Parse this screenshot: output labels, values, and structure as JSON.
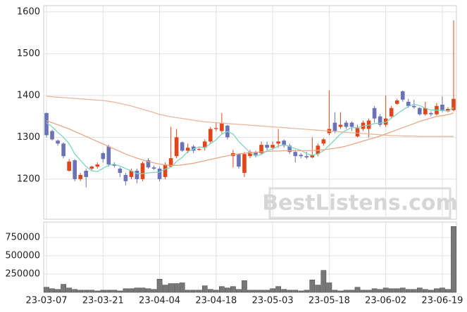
{
  "chart_data": [
    {
      "type": "candlestick",
      "categories": [
        "23-03-07",
        null,
        null,
        null,
        null,
        null,
        null,
        null,
        null,
        null,
        "23-03-21",
        null,
        null,
        null,
        null,
        null,
        null,
        null,
        null,
        null,
        "23-04-04",
        null,
        null,
        null,
        null,
        null,
        null,
        null,
        null,
        null,
        "23-04-18",
        null,
        null,
        null,
        null,
        null,
        null,
        null,
        null,
        null,
        "23-05-03",
        null,
        null,
        null,
        null,
        null,
        null,
        null,
        null,
        null,
        "23-05-18",
        null,
        null,
        null,
        null,
        null,
        null,
        null,
        null,
        null,
        "23-06-02",
        null,
        null,
        null,
        null,
        null,
        null,
        null,
        null,
        null,
        "23-06-19",
        null,
        null
      ],
      "open": [
        1358,
        1315,
        1292,
        1285,
        1220,
        1245,
        1200,
        1220,
        1225,
        1230,
        1262,
        1278,
        1235,
        1225,
        1210,
        1205,
        1220,
        1200,
        1245,
        1228,
        1225,
        1205,
        1230,
        1255,
        1288,
        1268,
        1278,
        1270,
        1275,
        1290,
        1320,
        1315,
        1328,
        1255,
        1260,
        1215,
        1255,
        1265,
        1262,
        1282,
        1275,
        1285,
        1292,
        1280,
        1265,
        1258,
        1255,
        1252,
        1260,
        1285,
        1310,
        1335,
        1325,
        1335,
        1335,
        1302,
        1320,
        1320,
        1370,
        1350,
        1330,
        1350,
        1380,
        1410,
        1385,
        1375,
        1370,
        1355,
        1358,
        1355,
        1378,
        1362,
        1365
      ],
      "high": [
        1360,
        1318,
        1295,
        1288,
        1248,
        1248,
        1215,
        1225,
        1232,
        1240,
        1265,
        1282,
        1240,
        1228,
        1215,
        1225,
        1225,
        1242,
        1250,
        1232,
        1230,
        1240,
        1325,
        1320,
        1290,
        1285,
        1282,
        1275,
        1295,
        1325,
        1335,
        1358,
        1330,
        1270,
        1262,
        1265,
        1270,
        1268,
        1290,
        1290,
        1290,
        1320,
        1295,
        1285,
        1270,
        1262,
        1265,
        1300,
        1285,
        1298,
        1412,
        1360,
        1360,
        1340,
        1338,
        1330,
        1340,
        1345,
        1375,
        1355,
        1400,
        1375,
        1392,
        1412,
        1392,
        1390,
        1372,
        1385,
        1362,
        1382,
        1398,
        1372,
        1580
      ],
      "low": [
        1300,
        1292,
        1280,
        1250,
        1218,
        1195,
        1195,
        1180,
        1220,
        1225,
        1240,
        1230,
        1228,
        1205,
        1185,
        1200,
        1190,
        1195,
        1225,
        1222,
        1195,
        1200,
        1228,
        1250,
        1265,
        1262,
        1262,
        1268,
        1268,
        1285,
        1315,
        1310,
        1295,
        1228,
        1225,
        1205,
        1250,
        1252,
        1258,
        1270,
        1270,
        1275,
        1275,
        1260,
        1240,
        1250,
        1248,
        1250,
        1255,
        1280,
        1305,
        1310,
        1320,
        1320,
        1315,
        1300,
        1315,
        1300,
        1335,
        1325,
        1325,
        1345,
        1378,
        1385,
        1370,
        1368,
        1352,
        1352,
        1350,
        1352,
        1360,
        1360,
        1362
      ],
      "close": [
        1305,
        1295,
        1285,
        1255,
        1242,
        1200,
        1210,
        1205,
        1230,
        1235,
        1248,
        1235,
        1232,
        1215,
        1195,
        1220,
        1200,
        1238,
        1228,
        1225,
        1200,
        1235,
        1250,
        1300,
        1268,
        1275,
        1268,
        1272,
        1290,
        1320,
        1322,
        1335,
        1300,
        1262,
        1230,
        1260,
        1265,
        1258,
        1282,
        1275,
        1282,
        1290,
        1280,
        1265,
        1255,
        1255,
        1252,
        1258,
        1280,
        1295,
        1320,
        1315,
        1330,
        1325,
        1325,
        1322,
        1335,
        1340,
        1345,
        1330,
        1345,
        1370,
        1388,
        1390,
        1375,
        1372,
        1355,
        1370,
        1355,
        1375,
        1365,
        1368,
        1392
      ],
      "up_color": "#e0461a",
      "down_color": "#6a72b8",
      "lines": [
        {
          "color": "#7fd4c0",
          "values": [
            1335,
            1325,
            1312,
            1300,
            1285,
            1260,
            1245,
            1230,
            1220,
            1218,
            1226,
            1233,
            1236,
            1231,
            1225,
            1220,
            1213,
            1213,
            1215,
            1216,
            1217,
            1224,
            1228,
            1242,
            1252,
            1266,
            1272,
            1277,
            1275,
            1285,
            1294,
            1308,
            1314,
            1308,
            1290,
            1277,
            1263,
            1255,
            1259,
            1268,
            1272,
            1279,
            1282,
            1278,
            1273,
            1269,
            1261,
            1257,
            1260,
            1268,
            1281,
            1294,
            1308,
            1317,
            1323,
            1323,
            1327,
            1329,
            1333,
            1334,
            1336,
            1346,
            1356,
            1365,
            1374,
            1379,
            1376,
            1370,
            1365,
            1365,
            1364,
            1363,
            1371
          ]
        },
        {
          "color": "#e8a886",
          "values": [
            1340,
            1335,
            1330,
            1325,
            1320,
            1314,
            1308,
            1302,
            1296,
            1290,
            1284,
            1278,
            1272,
            1266,
            1260,
            1255,
            1250,
            1246,
            1242,
            1239,
            1236,
            1234,
            1233,
            1233,
            1234,
            1236,
            1238,
            1241,
            1244,
            1247,
            1250,
            1253,
            1256,
            1258,
            1260,
            1262,
            1263,
            1264,
            1265,
            1266,
            1267,
            1267,
            1268,
            1268,
            1268,
            1268,
            1268,
            1268,
            1269,
            1270,
            1272,
            1274,
            1276,
            1279,
            1283,
            1287,
            1291,
            1295,
            1299,
            1303,
            1308,
            1313,
            1318,
            1323,
            1328,
            1333,
            1338,
            1342,
            1346,
            1350,
            1352,
            1354,
            1358
          ]
        },
        {
          "color": "#e8b89c",
          "values": [
            1398,
            1397,
            1396,
            1395,
            1394,
            1393,
            1392,
            1391,
            1390,
            1389,
            1388,
            1386,
            1384,
            1381,
            1378,
            1375,
            1371,
            1367,
            1363,
            1359,
            1355,
            1352,
            1349,
            1347,
            1345,
            1343,
            1341,
            1339,
            1337,
            1336,
            1335,
            1334,
            1333,
            1332,
            1331,
            1330,
            1329,
            1328,
            1327,
            1326,
            1325,
            1324,
            1323,
            1322,
            1321,
            1320,
            1319,
            1318,
            1317,
            1316,
            1315,
            1314,
            1313,
            1312,
            1311,
            1310,
            1309,
            1308,
            1307,
            1306,
            1305,
            1304,
            1304,
            1303,
            1303,
            1303,
            1302,
            1302,
            1302,
            1302,
            1302,
            1302,
            1302
          ]
        }
      ],
      "ylim": [
        1104,
        1615
      ],
      "yticks": [
        1200,
        1300,
        1400,
        1500,
        1600
      ],
      "grid": true,
      "watermark": "BestListens.com"
    },
    {
      "type": "bar",
      "values": [
        70000,
        50000,
        40000,
        110000,
        60000,
        40000,
        30000,
        30000,
        30000,
        20000,
        30000,
        30000,
        30000,
        20000,
        50000,
        50000,
        60000,
        60000,
        50000,
        40000,
        180000,
        100000,
        120000,
        120000,
        130000,
        30000,
        30000,
        30000,
        90000,
        40000,
        30000,
        80000,
        60000,
        80000,
        40000,
        160000,
        30000,
        30000,
        30000,
        30000,
        50000,
        80000,
        40000,
        30000,
        30000,
        20000,
        30000,
        170000,
        100000,
        300000,
        130000,
        30000,
        20000,
        30000,
        30000,
        70000,
        30000,
        30000,
        50000,
        40000,
        60000,
        50000,
        50000,
        60000,
        40000,
        40000,
        60000,
        40000,
        30000,
        50000,
        60000,
        40000,
        900000
      ],
      "color": "#777777",
      "ylim": [
        0,
        960000
      ],
      "yticks": [
        250000,
        500000,
        750000
      ],
      "grid": true
    }
  ]
}
